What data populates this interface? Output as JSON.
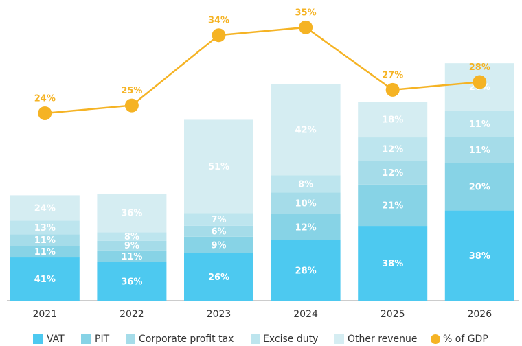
{
  "chart_data": {
    "type": "bar",
    "categories": [
      "2021",
      "2022",
      "2023",
      "2024",
      "2025",
      "2026"
    ],
    "totals": [
      13.5,
      13.7,
      23.4,
      27.7,
      25.2,
      30.4
    ],
    "ylim": [
      0,
      38.5
    ],
    "series": [
      {
        "name": "VAT",
        "color": "#4dc9f0",
        "values": [
          41,
          36,
          26,
          28,
          38,
          38
        ],
        "value_labels": [
          "41%",
          "36%",
          "26%",
          "28%",
          "38%",
          "38%"
        ]
      },
      {
        "name": "PIT",
        "color": "#87d3e6",
        "values": [
          11,
          11,
          9,
          12,
          21,
          20
        ],
        "value_labels": [
          "11%",
          "11%",
          "9%",
          "12%",
          "21%",
          "20%"
        ]
      },
      {
        "name": "Corporate profit tax",
        "color": "#a5dce9",
        "values": [
          11,
          9,
          6,
          10,
          12,
          11
        ],
        "value_labels": [
          "11%",
          "9%",
          "6%",
          "10%",
          "12%",
          "11%"
        ]
      },
      {
        "name": "Excise duty",
        "color": "#bde5ee",
        "values": [
          13,
          8,
          7,
          8,
          12,
          11
        ],
        "value_labels": [
          "13%",
          "8%",
          "7%",
          "8%",
          "12%",
          "11%"
        ]
      },
      {
        "name": "Other revenue",
        "color": "#d5edf2",
        "values": [
          24,
          36,
          51,
          42,
          18,
          20
        ],
        "value_labels": [
          "24%",
          "36%",
          "51%",
          "42%",
          "18%",
          "20%"
        ]
      },
      {
        "name": "% of GDP",
        "type": "line",
        "color": "#f5b324",
        "values": [
          24,
          25,
          34,
          35,
          27,
          28
        ],
        "value_labels": [
          "24%",
          "25%",
          "34%",
          "35%",
          "27%",
          "28%"
        ]
      }
    ]
  }
}
